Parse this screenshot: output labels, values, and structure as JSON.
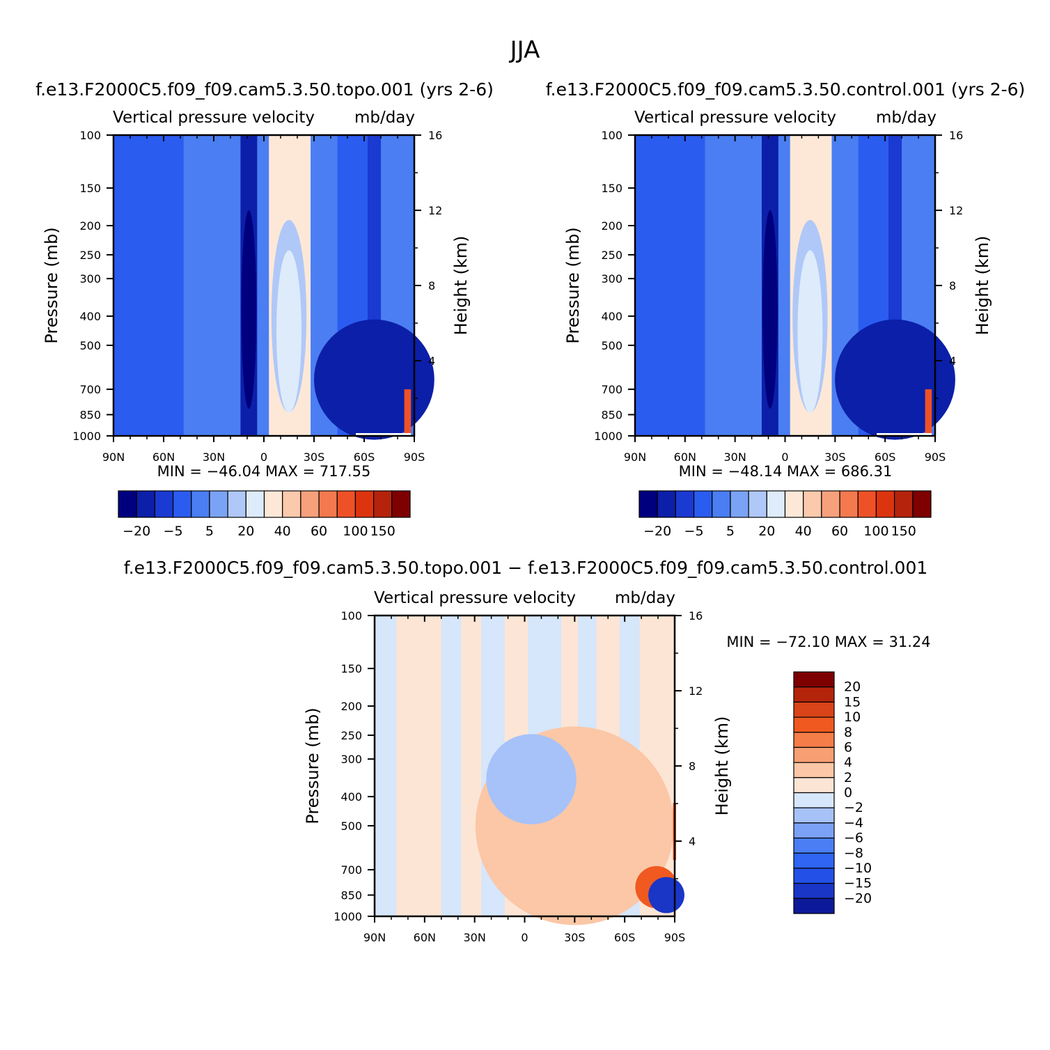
{
  "figure": {
    "title": "JJA"
  },
  "colors": {
    "abs_scale": [
      "#00007f",
      "#0c1fa8",
      "#1a3ad2",
      "#2b5cf0",
      "#4a7ef2",
      "#7ba3f5",
      "#afc8f8",
      "#ddebfb",
      "#fde8d8",
      "#fbc9ac",
      "#f7a17c",
      "#f4794f",
      "#ef5127",
      "#dd3410",
      "#b5230c",
      "#7f0000"
    ],
    "diff_scale": [
      "#0c1a9a",
      "#1a36c7",
      "#2350e6",
      "#2f65f2",
      "#4b7ef4",
      "#7ba1f6",
      "#a7c2f8",
      "#d6e6fb",
      "#fde5d5",
      "#fbc7a6",
      "#f89f73",
      "#f57d48",
      "#f0591f",
      "#d94418",
      "#b3240b",
      "#7f0000"
    ],
    "plot_bg_abs": "#4a7ef2",
    "plot_bg_diff": "#d6e6fb"
  },
  "chart_data": [
    {
      "type": "heatmap",
      "title": "f.e13.F2000C5.f09_f09.cam5.3.50.topo.001 (yrs 2-6)",
      "subtitle_left": "Vertical pressure velocity",
      "subtitle_right": "mb/day",
      "ylabel": "Pressure (mb)",
      "y2label": "Height (km)",
      "x_ticks": [
        "90N",
        "60N",
        "30N",
        "0",
        "30S",
        "60S",
        "90S"
      ],
      "y_ticks": [
        "100",
        "150",
        "200",
        "250",
        "300",
        "400",
        "500",
        "700",
        "850",
        "1000"
      ],
      "y_tick_values": [
        100,
        150,
        200,
        250,
        300,
        400,
        500,
        700,
        850,
        1000
      ],
      "y2_ticks": [
        "16",
        "12",
        "8",
        "4"
      ],
      "y2_tick_values": [
        16,
        12,
        8,
        4
      ],
      "ylim": [
        1000,
        100
      ],
      "xlim": [
        90,
        -90
      ],
      "min_text": "MIN = −46.04 MAX = 717.55",
      "min": -46.04,
      "max": 717.55,
      "colorbar_labels": [
        "−20",
        "−5",
        "5",
        "20",
        "40",
        "60",
        "100",
        "150"
      ],
      "colorbar_levels": [
        -20,
        -5,
        5,
        20,
        40,
        60,
        100,
        150
      ],
      "bands": [
        {
          "lat_from": 90,
          "lat_to": 75,
          "level": -5
        },
        {
          "lat_from": 75,
          "lat_to": 48,
          "level": -5
        },
        {
          "lat_from": 48,
          "lat_to": 26,
          "level": 0
        },
        {
          "lat_from": 26,
          "lat_to": 14,
          "level": 0
        },
        {
          "lat_from": 14,
          "lat_to": 4,
          "level": -15
        },
        {
          "lat_from": 4,
          "lat_to": -3,
          "level": 0
        },
        {
          "lat_from": -3,
          "lat_to": -28,
          "level": 30
        },
        {
          "lat_from": -28,
          "lat_to": -44,
          "level": 0
        },
        {
          "lat_from": -44,
          "lat_to": -62,
          "level": -5
        },
        {
          "lat_from": -62,
          "lat_to": -70,
          "level": -10
        },
        {
          "lat_from": -70,
          "lat_to": -90,
          "level": 0
        }
      ]
    },
    {
      "type": "heatmap",
      "title": "f.e13.F2000C5.f09_f09.cam5.3.50.control.001 (yrs 2-6)",
      "subtitle_left": "Vertical pressure velocity",
      "subtitle_right": "mb/day",
      "ylabel": "Pressure (mb)",
      "y2label": "Height (km)",
      "x_ticks": [
        "90N",
        "60N",
        "30N",
        "0",
        "30S",
        "60S",
        "90S"
      ],
      "y_ticks": [
        "100",
        "150",
        "200",
        "250",
        "300",
        "400",
        "500",
        "700",
        "850",
        "1000"
      ],
      "y_tick_values": [
        100,
        150,
        200,
        250,
        300,
        400,
        500,
        700,
        850,
        1000
      ],
      "y2_ticks": [
        "16",
        "12",
        "8",
        "4"
      ],
      "y2_tick_values": [
        16,
        12,
        8,
        4
      ],
      "ylim": [
        1000,
        100
      ],
      "xlim": [
        90,
        -90
      ],
      "min_text": "MIN = −48.14 MAX = 686.31",
      "min": -48.14,
      "max": 686.31,
      "colorbar_labels": [
        "−20",
        "−5",
        "5",
        "20",
        "40",
        "60",
        "100",
        "150"
      ],
      "colorbar_levels": [
        -20,
        -5,
        5,
        20,
        40,
        60,
        100,
        150
      ],
      "bands": [
        {
          "lat_from": 90,
          "lat_to": 75,
          "level": -5
        },
        {
          "lat_from": 75,
          "lat_to": 48,
          "level": -5
        },
        {
          "lat_from": 48,
          "lat_to": 26,
          "level": 0
        },
        {
          "lat_from": 26,
          "lat_to": 14,
          "level": 0
        },
        {
          "lat_from": 14,
          "lat_to": 4,
          "level": -15
        },
        {
          "lat_from": 4,
          "lat_to": -3,
          "level": 0
        },
        {
          "lat_from": -3,
          "lat_to": -28,
          "level": 30
        },
        {
          "lat_from": -28,
          "lat_to": -44,
          "level": 0
        },
        {
          "lat_from": -44,
          "lat_to": -62,
          "level": -5
        },
        {
          "lat_from": -62,
          "lat_to": -70,
          "level": -10
        },
        {
          "lat_from": -70,
          "lat_to": -90,
          "level": 0
        }
      ]
    },
    {
      "type": "heatmap",
      "title": "f.e13.F2000C5.f09_f09.cam5.3.50.topo.001 − f.e13.F2000C5.f09_f09.cam5.3.50.control.001",
      "subtitle_left": "Vertical pressure velocity",
      "subtitle_right": "mb/day",
      "ylabel": "Pressure (mb)",
      "y2label": "Height (km)",
      "x_ticks": [
        "90N",
        "60N",
        "30N",
        "0",
        "30S",
        "60S",
        "90S"
      ],
      "y_ticks": [
        "100",
        "150",
        "200",
        "250",
        "300",
        "400",
        "500",
        "700",
        "850",
        "1000"
      ],
      "y_tick_values": [
        100,
        150,
        200,
        250,
        300,
        400,
        500,
        700,
        850,
        1000
      ],
      "y2_ticks": [
        "16",
        "12",
        "8",
        "4"
      ],
      "y2_tick_values": [
        16,
        12,
        8,
        4
      ],
      "ylim": [
        1000,
        100
      ],
      "xlim": [
        90,
        -90
      ],
      "min_text": "MIN = −72.10 MAX = 31.24",
      "min": -72.1,
      "max": 31.24,
      "colorbar_labels": [
        "20",
        "15",
        "10",
        "8",
        "6",
        "4",
        "2",
        "0",
        "−2",
        "−4",
        "−6",
        "−8",
        "−10",
        "−15",
        "−20"
      ],
      "colorbar_levels": [
        20,
        15,
        10,
        8,
        6,
        4,
        2,
        0,
        -2,
        -4,
        -6,
        -8,
        -10,
        -15,
        -20
      ],
      "bands": [
        {
          "lat_from": 90,
          "lat_to": 77,
          "level": -1
        },
        {
          "lat_from": 77,
          "lat_to": 50,
          "level": 1
        },
        {
          "lat_from": 50,
          "lat_to": 38,
          "level": -1
        },
        {
          "lat_from": 38,
          "lat_to": 26,
          "level": 1
        },
        {
          "lat_from": 26,
          "lat_to": 12,
          "level": -1
        },
        {
          "lat_from": 12,
          "lat_to": -2,
          "level": 1
        },
        {
          "lat_from": -2,
          "lat_to": -22,
          "level": -1
        },
        {
          "lat_from": -22,
          "lat_to": -32,
          "level": 1
        },
        {
          "lat_from": -32,
          "lat_to": -43,
          "level": -1
        },
        {
          "lat_from": -43,
          "lat_to": -57,
          "level": 1
        },
        {
          "lat_from": -57,
          "lat_to": -69,
          "level": -1
        },
        {
          "lat_from": -69,
          "lat_to": -90,
          "level": 1
        }
      ]
    }
  ]
}
